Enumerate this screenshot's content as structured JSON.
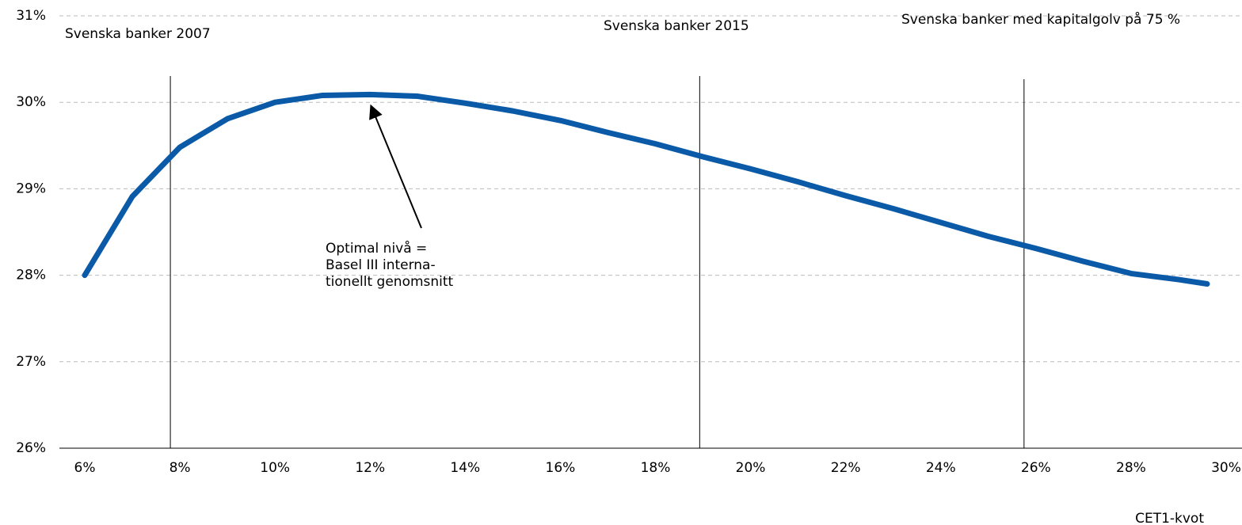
{
  "chart_data": {
    "type": "line",
    "x": [
      6,
      7,
      8,
      9,
      10,
      11,
      12,
      13,
      14,
      15,
      16,
      17,
      18,
      19,
      20,
      21,
      22,
      23,
      24,
      25,
      26,
      27,
      28,
      29,
      29.6
    ],
    "series": [
      {
        "name": "Optimal",
        "color": "#0a5aa8",
        "values": [
          28.0,
          28.91,
          29.48,
          29.81,
          30.0,
          30.08,
          30.09,
          30.07,
          29.99,
          29.9,
          29.79,
          29.65,
          29.52,
          29.37,
          29.23,
          29.08,
          28.92,
          28.77,
          28.61,
          28.45,
          28.31,
          28.16,
          28.02,
          27.95,
          27.9
        ]
      }
    ],
    "xlim": [
      6,
      30
    ],
    "xticks": [
      {
        "value": 6,
        "label": "6%"
      },
      {
        "value": 8,
        "label": "8%"
      },
      {
        "value": 10,
        "label": "10%"
      },
      {
        "value": 12,
        "label": "12%"
      },
      {
        "value": 14,
        "label": "14%"
      },
      {
        "value": 16,
        "label": "16%"
      },
      {
        "value": 18,
        "label": "18%"
      },
      {
        "value": 20,
        "label": "20%"
      },
      {
        "value": 22,
        "label": "22%"
      },
      {
        "value": 24,
        "label": "24%"
      },
      {
        "value": 26,
        "label": "26%"
      },
      {
        "value": 28,
        "label": "28%"
      },
      {
        "value": 30,
        "label": "30%"
      }
    ],
    "ylim": [
      26,
      31
    ],
    "yticks": [
      {
        "value": 26,
        "label": "26%"
      },
      {
        "value": 27,
        "label": "27%"
      },
      {
        "value": 28,
        "label": "28%"
      },
      {
        "value": 29,
        "label": "29%"
      },
      {
        "value": 30,
        "label": "30%"
      },
      {
        "value": 31,
        "label": "31%"
      }
    ],
    "grid": true,
    "x_label": "CET1-kvot",
    "markers": [
      {
        "x": 7.8,
        "label": "Svenska banker 2007"
      },
      {
        "x": 18.93,
        "label": "Svenska banker 2015"
      },
      {
        "x": 25.75,
        "label": "Svenska banker med kapitalgolv på 75 %"
      }
    ],
    "annotation": {
      "x": 12,
      "y": 30.09,
      "lines": [
        "Optimal nivå =",
        "Basel III interna-",
        "tionellt genomsnitt"
      ]
    }
  }
}
